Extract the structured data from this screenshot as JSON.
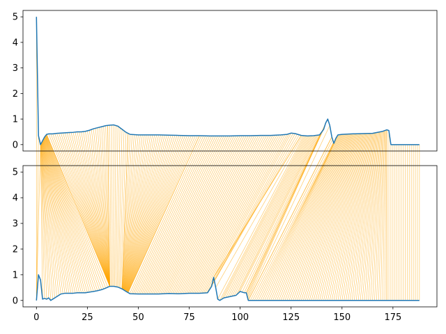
{
  "chart_data": [
    {
      "type": "line",
      "panel": "top",
      "xlim": [
        -6.6,
        196.6
      ],
      "ylim": [
        -0.25,
        5.25
      ],
      "yticks": [
        0,
        1,
        2,
        3,
        4,
        5
      ],
      "xticks": [],
      "grid": false,
      "series": [
        {
          "color": "#1f77b4",
          "x": [
            0,
            1,
            2,
            3,
            4,
            5,
            6,
            8,
            10,
            12,
            14,
            16,
            18,
            20,
            22,
            24,
            26,
            28,
            30,
            32,
            34,
            36,
            38,
            40,
            42,
            44,
            46,
            50,
            55,
            60,
            65,
            70,
            75,
            80,
            85,
            90,
            95,
            100,
            105,
            110,
            115,
            120,
            123,
            125,
            127,
            130,
            133,
            136,
            139,
            141,
            142,
            143,
            144,
            145,
            146,
            147,
            148,
            150,
            155,
            160,
            165,
            170,
            172,
            173,
            174,
            178,
            182,
            186,
            188
          ],
          "y": [
            5.0,
            0.35,
            0.0,
            0.15,
            0.3,
            0.4,
            0.42,
            0.42,
            0.44,
            0.45,
            0.46,
            0.47,
            0.48,
            0.5,
            0.5,
            0.52,
            0.56,
            0.62,
            0.66,
            0.7,
            0.74,
            0.76,
            0.77,
            0.72,
            0.6,
            0.48,
            0.4,
            0.38,
            0.38,
            0.38,
            0.37,
            0.36,
            0.35,
            0.35,
            0.34,
            0.34,
            0.34,
            0.35,
            0.35,
            0.36,
            0.36,
            0.38,
            0.4,
            0.45,
            0.43,
            0.36,
            0.34,
            0.35,
            0.38,
            0.6,
            0.85,
            1.0,
            0.75,
            0.3,
            0.05,
            0.25,
            0.38,
            0.4,
            0.42,
            0.43,
            0.44,
            0.52,
            0.58,
            0.55,
            0.0,
            0.0,
            0.0,
            0.0,
            0.0
          ]
        }
      ]
    },
    {
      "type": "line",
      "panel": "bottom",
      "xlim": [
        -6.6,
        196.6
      ],
      "ylim": [
        -0.25,
        5.25
      ],
      "yticks": [
        0,
        1,
        2,
        3,
        4,
        5
      ],
      "xticks": [
        0,
        25,
        50,
        75,
        100,
        125,
        150,
        175
      ],
      "grid": false,
      "series": [
        {
          "color": "#1f77b4",
          "x": [
            0,
            1,
            2,
            3,
            4,
            5,
            6,
            7,
            8,
            9,
            10,
            12,
            14,
            16,
            18,
            20,
            24,
            28,
            30,
            32,
            34,
            36,
            38,
            40,
            42,
            44,
            46,
            50,
            55,
            60,
            65,
            70,
            75,
            80,
            84,
            86,
            87,
            88,
            89,
            90,
            92,
            95,
            98,
            100,
            102,
            103,
            104,
            110,
            130,
            150,
            170,
            188
          ],
          "y": [
            0.0,
            1.0,
            0.8,
            0.05,
            0.08,
            0.05,
            0.1,
            0.0,
            0.05,
            0.1,
            0.15,
            0.25,
            0.28,
            0.28,
            0.28,
            0.3,
            0.3,
            0.35,
            0.38,
            0.42,
            0.48,
            0.55,
            0.55,
            0.52,
            0.45,
            0.35,
            0.26,
            0.25,
            0.25,
            0.25,
            0.27,
            0.26,
            0.28,
            0.28,
            0.3,
            0.55,
            0.9,
            0.5,
            0.05,
            0.0,
            0.1,
            0.15,
            0.2,
            0.35,
            0.3,
            0.3,
            0.0,
            0.0,
            0.0,
            0.0,
            0.0,
            0.0
          ]
        }
      ]
    }
  ],
  "alignment": {
    "color": "#ffa500",
    "opacity": 0.6,
    "segments": [
      {
        "top": [
          0,
          2
        ],
        "bottom": [
          0,
          0
        ]
      },
      {
        "top": [
          2,
          5
        ],
        "bottom": [
          3,
          36
        ]
      },
      {
        "top": [
          5,
          35
        ],
        "bottom": [
          36,
          36
        ]
      },
      {
        "top": [
          35,
          45
        ],
        "bottom": [
          36,
          42
        ]
      },
      {
        "top": [
          45,
          80
        ],
        "bottom": [
          42,
          45
        ]
      },
      {
        "top": [
          80,
          130
        ],
        "bottom": [
          45,
          87
        ]
      },
      {
        "top": [
          130,
          140
        ],
        "bottom": [
          87,
          103
        ]
      },
      {
        "top": [
          140,
          145
        ],
        "bottom": [
          103,
          104
        ]
      },
      {
        "top": [
          145,
          172
        ],
        "bottom": [
          104,
          172
        ]
      },
      {
        "top": [
          172,
          188
        ],
        "bottom": [
          172,
          188
        ]
      }
    ]
  }
}
